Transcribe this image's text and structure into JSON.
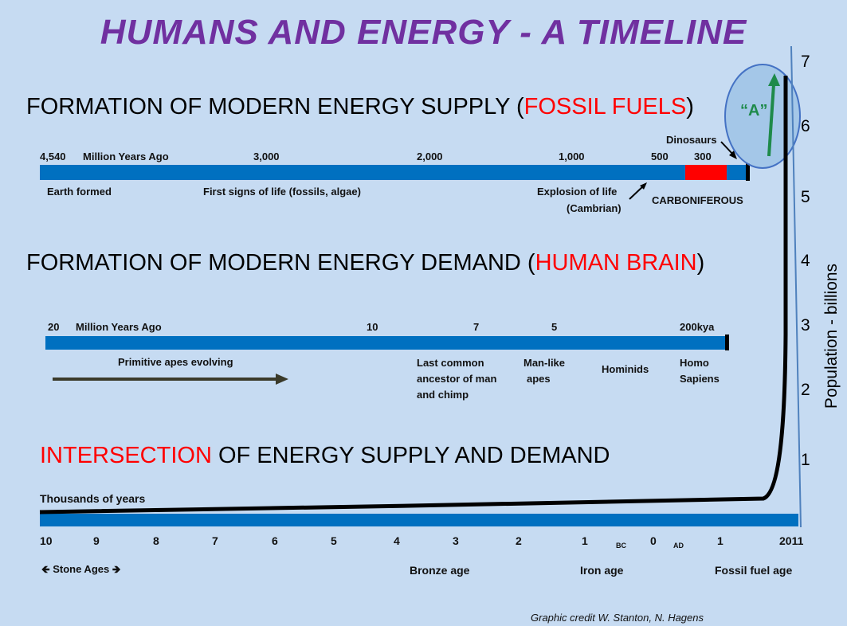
{
  "title": "HUMANS AND ENERGY -  A TIMELINE",
  "supply": {
    "heading_pre": "FORMATION OF MODERN ENERGY SUPPLY (",
    "heading_red": "FOSSIL FUELS",
    "heading_post": ")",
    "ticks": [
      "4,540",
      "Million Years Ago",
      "3,000",
      "2,000",
      "1,000",
      "500",
      "300"
    ],
    "dinosaurs": "Dinosaurs",
    "earth_formed": "Earth formed",
    "first_life": "First signs of life (fossils, algae)",
    "explosion_line1": "Explosion of life",
    "explosion_line2": "(Cambrian)",
    "carboniferous": "CARBONIFEROUS"
  },
  "demand": {
    "heading_pre": "FORMATION OF MODERN ENERGY DEMAND (",
    "heading_red": "HUMAN BRAIN",
    "heading_post": ")",
    "ticks": [
      "20",
      "Million Years Ago",
      "10",
      "7",
      "5",
      "200kya"
    ],
    "primitive": "Primitive apes evolving",
    "last_common": [
      "Last common",
      "ancestor of man",
      "and chimp"
    ],
    "manlike": [
      "Man-like",
      "apes"
    ],
    "hominids": "Hominids",
    "homo": [
      "Homo",
      "Sapiens"
    ]
  },
  "intersection": {
    "heading_red": "INTERSECTION",
    "heading_rest": " OF ENERGY SUPPLY AND DEMAND",
    "thousands": "Thousands of years",
    "ticks": [
      "10",
      "9",
      "8",
      "7",
      "6",
      "5",
      "4",
      "3",
      "2",
      "1",
      "BC",
      "0",
      "AD",
      "1",
      "2011"
    ],
    "stone": "Stone Ages",
    "bronze": "Bronze age",
    "iron": "Iron age",
    "fossil": "Fossil fuel age"
  },
  "population": {
    "axis_label": "Population - billions",
    "ticks": [
      "7",
      "6",
      "5",
      "4",
      "3",
      "2",
      "1"
    ]
  },
  "callout": {
    "label": "“A”"
  },
  "credit": "Graphic credit W. Stanton, N. Hagens",
  "colors": {
    "title": "#7030a0",
    "bar": "#0070c0",
    "highlight": "#ff0000",
    "callout_arrow": "#1e8a4a"
  }
}
